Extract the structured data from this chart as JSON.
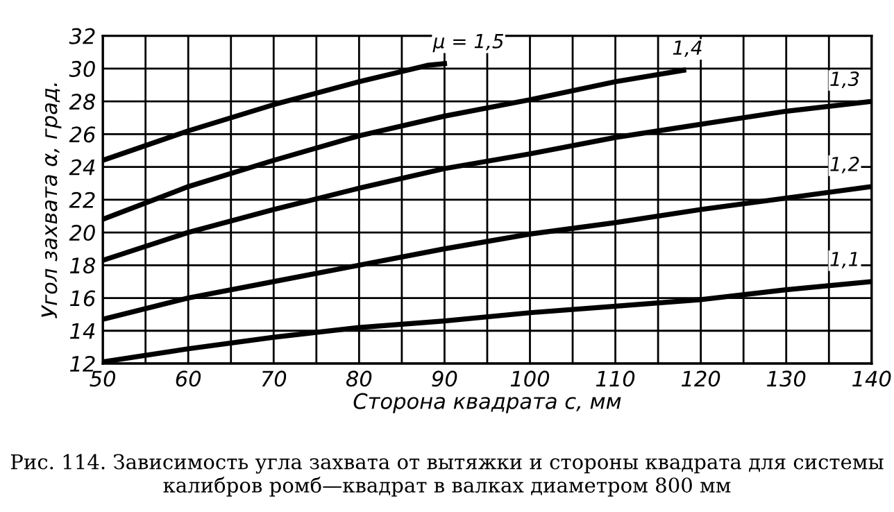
{
  "chart_data": {
    "type": "line",
    "xlabel": "Сторона квадрата c, мм",
    "ylabel": "Угол захвата α, град.",
    "xlim": [
      50,
      140
    ],
    "ylim": [
      12,
      32
    ],
    "xticks": [
      50,
      {
        "value": 55,
        "label": null
      },
      60,
      {
        "value": 65,
        "label": null
      },
      70,
      {
        "value": 75,
        "label": null
      },
      80,
      {
        "value": 85,
        "label": null
      },
      90,
      {
        "value": 95,
        "label": null
      },
      100,
      {
        "value": 105,
        "label": null
      },
      110,
      {
        "value": 115,
        "label": null
      },
      120,
      {
        "value": 125,
        "label": null
      },
      130,
      {
        "value": 135,
        "label": null
      },
      140
    ],
    "yticks": [
      12,
      14,
      16,
      18,
      20,
      22,
      24,
      26,
      28,
      30,
      32
    ],
    "grid": true,
    "line_style": "solid",
    "marker": "none",
    "legend": false,
    "series": [
      {
        "name": "μ = 1,5",
        "color": "#000000",
        "x": [
          50,
          60,
          70,
          80,
          88,
          90
        ],
        "values": [
          24.4,
          26.2,
          27.8,
          29.2,
          30.2,
          30.3
        ]
      },
      {
        "name": "1,4",
        "color": "#000000",
        "x": [
          50,
          60,
          70,
          80,
          90,
          100,
          110,
          118
        ],
        "values": [
          20.8,
          22.8,
          24.4,
          25.9,
          27.1,
          28.1,
          29.2,
          29.9
        ]
      },
      {
        "name": "1,3",
        "color": "#000000",
        "x": [
          50,
          60,
          70,
          80,
          90,
          100,
          110,
          120,
          130,
          140
        ],
        "values": [
          18.3,
          20.0,
          21.4,
          22.7,
          23.9,
          24.8,
          25.8,
          26.6,
          27.4,
          28.0
        ]
      },
      {
        "name": "1,2",
        "color": "#000000",
        "x": [
          50,
          60,
          70,
          80,
          90,
          100,
          110,
          120,
          130,
          140
        ],
        "values": [
          14.7,
          16.0,
          17.0,
          18.0,
          19.0,
          19.9,
          20.6,
          21.4,
          22.1,
          22.8
        ]
      },
      {
        "name": "1,1",
        "color": "#000000",
        "x": [
          50,
          60,
          70,
          80,
          90,
          100,
          110,
          120,
          130,
          140
        ],
        "values": [
          12.1,
          12.9,
          13.6,
          14.2,
          14.6,
          15.1,
          15.5,
          15.9,
          16.5,
          17.0
        ]
      }
    ],
    "annotations": [
      "Рис. 114. Зависимость угла захвата от вытяжки и стороны квадрата для системы калибров ромб—квадрат в валках диаметром 800 мм"
    ]
  }
}
